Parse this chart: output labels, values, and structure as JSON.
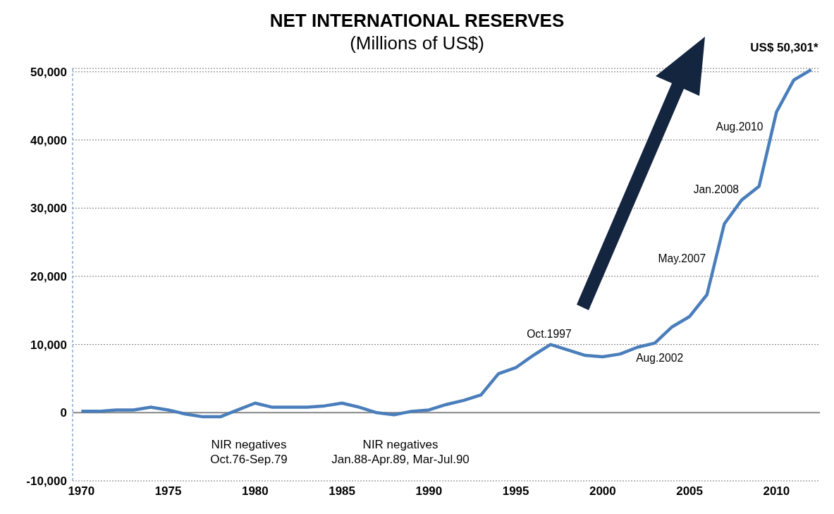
{
  "chart_data": {
    "type": "line",
    "title": "NET INTERNATIONAL RESERVES",
    "subtitle": "(Millions of US$)",
    "x": [
      1970,
      1971,
      1972,
      1973,
      1974,
      1975,
      1976,
      1977,
      1978,
      1979,
      1980,
      1981,
      1982,
      1983,
      1984,
      1985,
      1986,
      1987,
      1988,
      1989,
      1990,
      1991,
      1992,
      1993,
      1994,
      1995,
      1996,
      1997,
      1998,
      1999,
      2000,
      2001,
      2002,
      2003,
      2004,
      2005,
      2006,
      2007,
      2008,
      2009,
      2010,
      2011,
      2012
    ],
    "series": [
      {
        "color": "#4a7ebb",
        "values": [
          200,
          200,
          400,
          400,
          800,
          400,
          -200,
          -600,
          -600,
          400,
          1400,
          800,
          800,
          800,
          1000,
          1400,
          800,
          0,
          -300,
          200,
          400,
          1200,
          1800,
          2600,
          5700,
          6600,
          8400,
          10000,
          9200,
          8400,
          8200,
          8600,
          9600,
          10200,
          12600,
          14100,
          17300,
          27700,
          31200,
          33200,
          44100,
          48800,
          50301
        ]
      }
    ],
    "xlim": [
      1969.5,
      2012.5
    ],
    "xticks": [
      1970,
      1975,
      1980,
      1985,
      1990,
      1995,
      2000,
      2005,
      2010
    ],
    "ylim": [
      -10000,
      50500
    ],
    "yticks": [
      {
        "value": -10000,
        "label": "-10,000"
      },
      0,
      {
        "value": 10000,
        "label": "10,000"
      },
      {
        "value": 20000,
        "label": "20,000"
      },
      {
        "value": 30000,
        "label": "30,000"
      },
      {
        "value": 40000,
        "label": "40,000"
      },
      {
        "value": 50000,
        "label": "50,000"
      }
    ],
    "grid": "y",
    "legend": false,
    "marker": "none",
    "line_style": "solid",
    "annotations": [
      {
        "text": "Oct.1997",
        "x": 1997,
        "y": 10000
      },
      {
        "text": "Aug.2002",
        "x": 2002,
        "y": 9600
      },
      {
        "text": "May.2007",
        "x": 2006.5,
        "y": 22500
      },
      {
        "text": "Jan.2008",
        "x": 2008,
        "y": 31200
      },
      {
        "text": "Aug.2010",
        "x": 2009.8,
        "y": 41900
      },
      {
        "text": "US$ 50,301*",
        "x": 2012,
        "y": 50301
      },
      "NIR negatives\nOct.76-Sep.79",
      "NIR negatives\nJan.88-Apr.89, Mar-Jul.90"
    ]
  }
}
